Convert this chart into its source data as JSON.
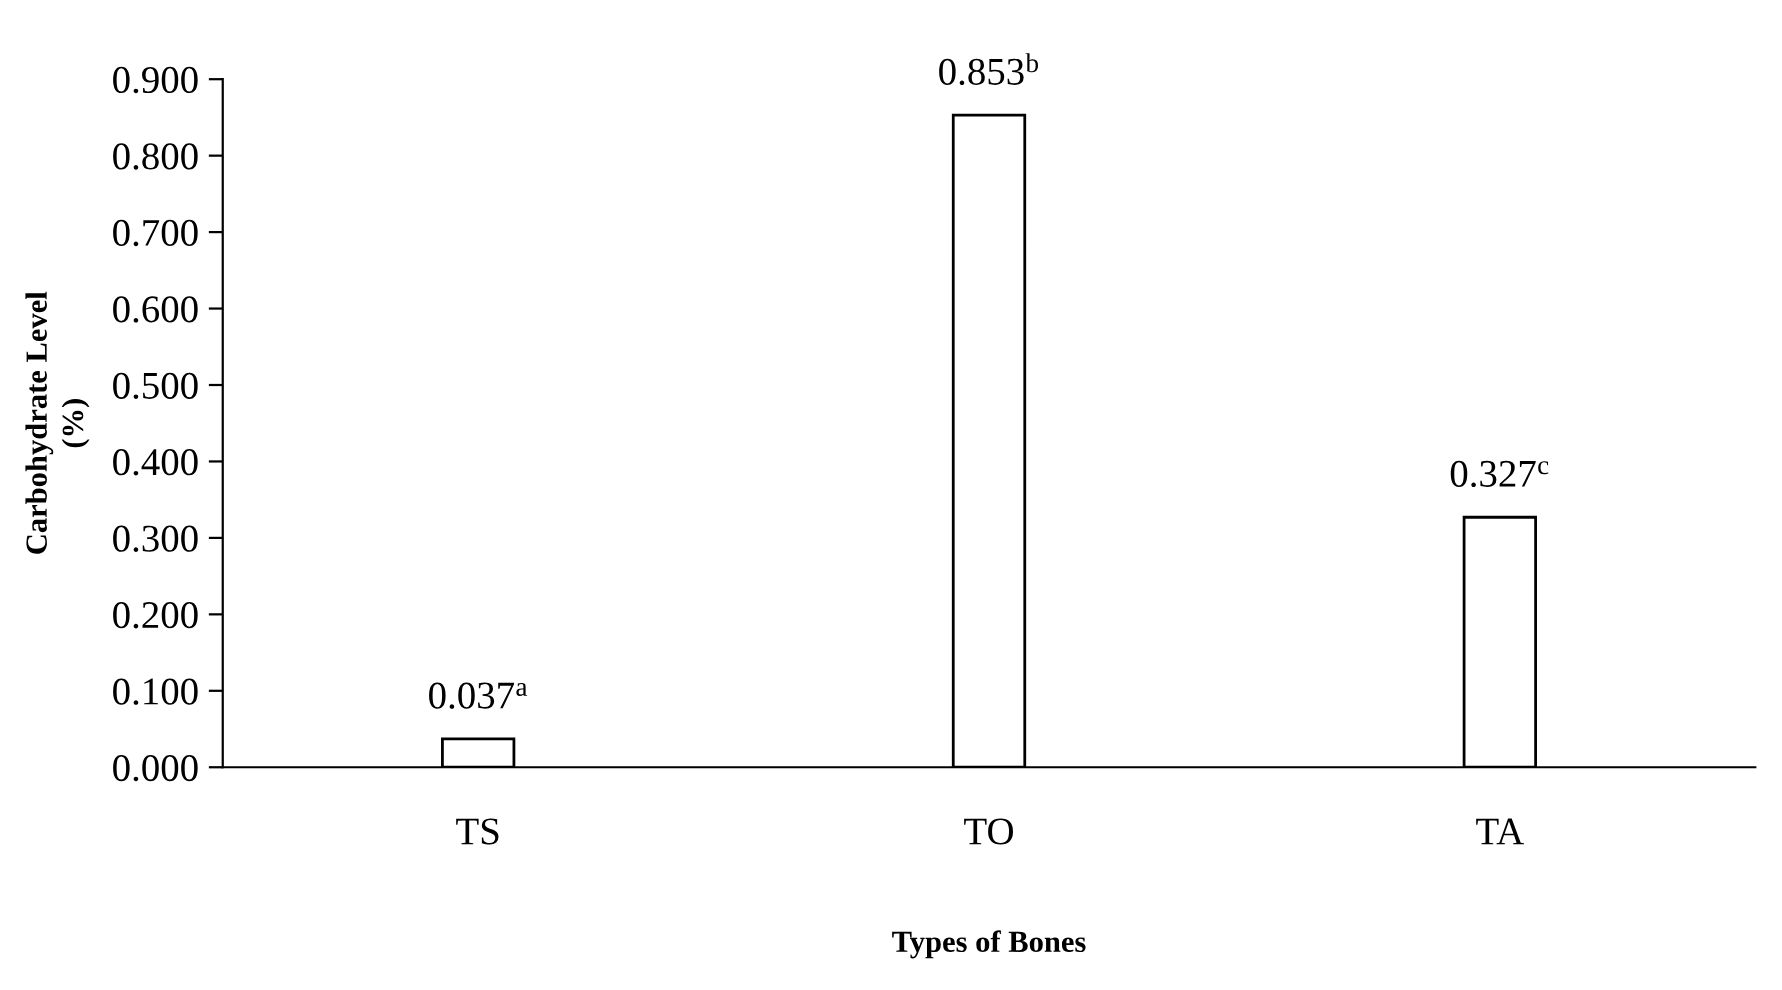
{
  "chart_data": {
    "type": "bar",
    "xlabel": "Types of Bones",
    "ylabel": "Carbohydrate Level\n(%)",
    "categories": [
      "TS",
      "TO",
      "TA"
    ],
    "values": [
      0.037,
      0.853,
      0.327
    ],
    "value_labels": [
      "0.037$^{a}$",
      "0.853$^{b}$",
      "0.327$^{c}$"
    ],
    "color": "#ffffff",
    "ylim": [
      0,
      0.9
    ],
    "yticks": [
      {
        "value": 0,
        "label": "0.000"
      },
      {
        "value": 0.1,
        "label": "0.100"
      },
      {
        "value": 0.2,
        "label": "0.200"
      },
      {
        "value": 0.3,
        "label": "0.300"
      },
      {
        "value": 0.4,
        "label": "0.400"
      },
      {
        "value": 0.5,
        "label": "0.500"
      },
      {
        "value": 0.6,
        "label": "0.600"
      },
      {
        "value": 0.7,
        "label": "0.700"
      },
      {
        "value": 0.8,
        "label": "0.800"
      },
      {
        "value": 0.9,
        "label": "0.900"
      }
    ],
    "grid": false,
    "legend": false
  }
}
